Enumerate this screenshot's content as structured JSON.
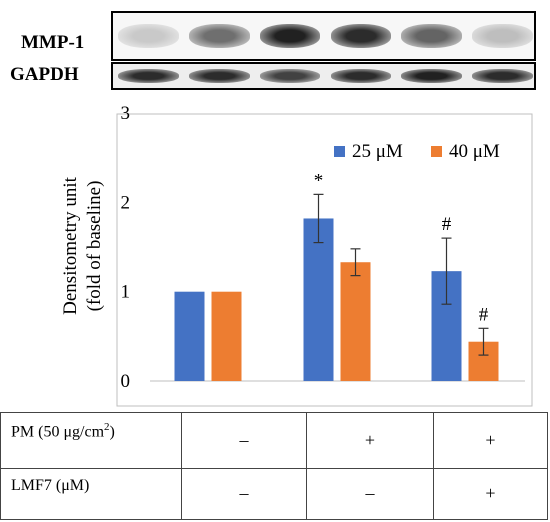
{
  "blot": {
    "mmp1_label": "MMP-1",
    "gapdh_label": "GAPDH",
    "mmp1_band_intensity": [
      0.15,
      0.55,
      0.9,
      0.85,
      0.6,
      0.2
    ],
    "gapdh_band_intensity": [
      0.85,
      0.85,
      0.75,
      0.85,
      0.9,
      0.85
    ]
  },
  "chart_data": {
    "type": "bar",
    "ylabel_line1": "Densitometry unit",
    "ylabel_line2": "(fold of baseline)",
    "ylim": [
      0,
      3
    ],
    "yticks": [
      "0",
      "1",
      "2",
      "3"
    ],
    "groups": 3,
    "series": [
      {
        "name": "25 μM",
        "color": "#4472C4",
        "values": [
          1.0,
          1.82,
          1.23
        ],
        "errors": [
          0.0,
          0.27,
          0.37
        ],
        "marks": [
          "",
          "*",
          "#"
        ]
      },
      {
        "name": "40 μM",
        "color": "#ED7D31",
        "values": [
          1.0,
          1.33,
          0.44
        ],
        "errors": [
          0.0,
          0.15,
          0.15
        ],
        "marks": [
          "",
          "",
          "#"
        ]
      }
    ],
    "legend_position": "top-right"
  },
  "conditions": {
    "rows": [
      {
        "label_main": "PM (50 μg/cm",
        "label_sup": "2",
        "label_end": ")",
        "cells": [
          "–",
          "+",
          "+"
        ]
      },
      {
        "label_main": "LMF7 (μM)",
        "label_sup": "",
        "label_end": "",
        "cells": [
          "–",
          "–",
          "+"
        ]
      }
    ]
  }
}
